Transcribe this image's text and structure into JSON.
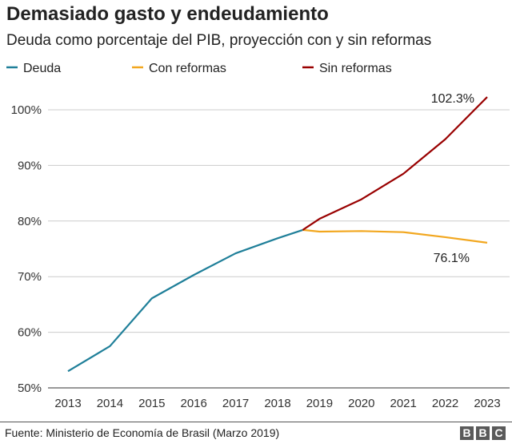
{
  "title": "Demasiado gasto y endeudamiento",
  "subtitle": "Deuda como porcentaje del PIB, proyección con y sin reformas",
  "source": "Fuente: Ministerio de Economía de Brasil (Marzo 2019)",
  "logo": "BBC",
  "chart_data": {
    "type": "line",
    "title": "Demasiado gasto y endeudamiento",
    "subtitle": "Deuda como porcentaje del PIB, proyección con y sin reformas",
    "xlim": [
      2013,
      2023
    ],
    "ylim": [
      50,
      100
    ],
    "x_ticks": [
      "2013",
      "2014",
      "2015",
      "2016",
      "2017",
      "2018",
      "2019",
      "2020",
      "2021",
      "2022",
      "2023"
    ],
    "y_ticks": [
      {
        "v": 50,
        "label": "50%"
      },
      {
        "v": 60,
        "label": "60%"
      },
      {
        "v": 70,
        "label": "70%"
      },
      {
        "v": 80,
        "label": "80%"
      },
      {
        "v": 90,
        "label": "90%"
      },
      {
        "v": 100,
        "label": "100%"
      }
    ],
    "grid": true,
    "legend_position": "top",
    "series": [
      {
        "name": "Deuda",
        "color": "#1f7f99",
        "x": [
          2013,
          2014,
          2015,
          2016,
          2017,
          2018,
          2018.6
        ],
        "y": [
          53.0,
          57.5,
          66.1,
          70.3,
          74.2,
          76.9,
          78.4
        ]
      },
      {
        "name": "Con reformas",
        "color": "#f2a71f",
        "x": [
          2018.6,
          2019,
          2020,
          2021,
          2022,
          2023
        ],
        "y": [
          78.4,
          78.1,
          78.2,
          78.0,
          77.1,
          76.1
        ]
      },
      {
        "name": "Sin reformas",
        "color": "#990000",
        "x": [
          2018.6,
          2019,
          2020,
          2021,
          2022,
          2023
        ],
        "y": [
          78.4,
          80.4,
          83.9,
          88.5,
          94.7,
          102.3
        ]
      }
    ],
    "annotations": [
      {
        "text": "102.3%",
        "x": 2023,
        "y": 102.3
      },
      {
        "text": "76.1%",
        "x": 2023,
        "y": 76.1
      }
    ]
  }
}
